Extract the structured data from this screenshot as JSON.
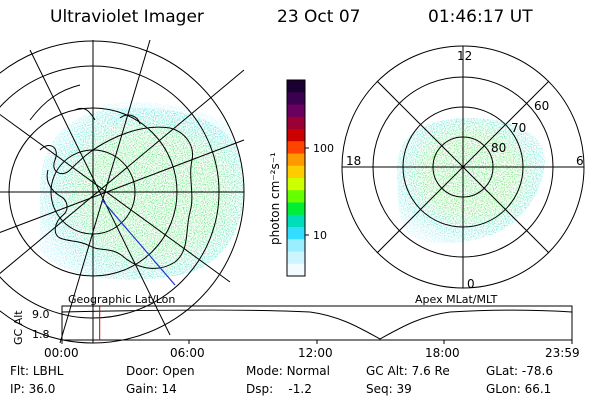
{
  "header": {
    "title": "Ultraviolet Imager",
    "date": "23 Oct 07",
    "time": "01:46:17 UT"
  },
  "colorbar": {
    "label": "photon cm⁻²s⁻¹",
    "ticks": [
      "100",
      "10"
    ],
    "colors": [
      "#1a0030",
      "#3b0050",
      "#6a0060",
      "#9a0033",
      "#cc0000",
      "#ff4400",
      "#ff9900",
      "#ffcc00",
      "#ccff00",
      "#66ff00",
      "#00ee33",
      "#00ddbb",
      "#33ddff",
      "#99eeff",
      "#ccf5ff",
      "#f0fcff"
    ]
  },
  "left_panel": {
    "label": "Geographic Lat/Lon"
  },
  "right_panel": {
    "label": "Apex MLat/MLT",
    "mlt_labels": {
      "top": "12",
      "left": "18",
      "right": "6",
      "bottom": "0"
    },
    "mlat_labels": [
      "60",
      "70",
      "80"
    ]
  },
  "timeline": {
    "ylabel": "GC Alt",
    "yticks": [
      "9.0",
      "1.8"
    ],
    "xticks": [
      "00:00",
      "06:00",
      "12:00",
      "18:00",
      "23:59"
    ],
    "current_time_fraction": 0.074
  },
  "info": {
    "flt_label": "Flt:",
    "flt_value": "LBHL",
    "ip_label": "IP:",
    "ip_value": "36.0",
    "door_label": "Door:",
    "door_value": "Open",
    "gain_label": "Gain:",
    "gain_value": "14",
    "mode_label": "Mode:",
    "mode_value": "Normal",
    "dsp_label": "Dsp:",
    "dsp_value": "-1.2",
    "gcalt_label": "GC Alt:",
    "gcalt_value": "7.6 Re",
    "seq_label": "Seq:",
    "seq_value": "39",
    "glat_label": "GLat:",
    "glat_value": "-78.6",
    "glon_label": "GLon:",
    "glon_value": "66.1"
  }
}
